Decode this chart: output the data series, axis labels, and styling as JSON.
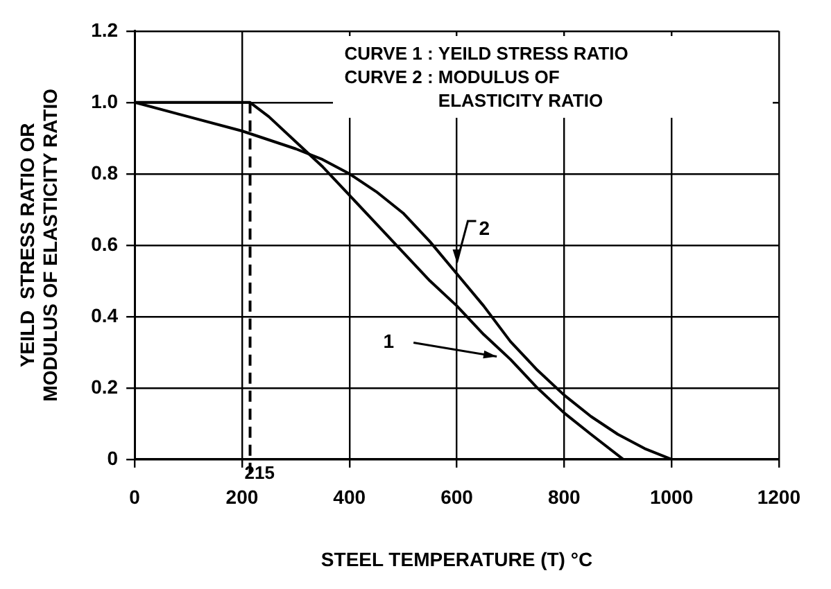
{
  "chart_data": {
    "type": "line",
    "xlabel": "STEEL TEMPERATURE (T) °C",
    "ylabel": "YEILD  STRESS RATIO OR MODULUS OF ELASTICITY RATIO",
    "xlim": [
      0,
      1200
    ],
    "xticks": [
      0,
      200,
      400,
      600,
      800,
      1000,
      1200
    ],
    "ylim": [
      0,
      1.2
    ],
    "yticks": [
      {
        "value": 0,
        "label": "0"
      },
      0.2,
      0.4,
      0.6,
      0.8,
      {
        "value": 1,
        "label": "1.0"
      },
      1.2
    ],
    "grid": true,
    "legend": false,
    "marker": "none",
    "line_style": "solid",
    "series": [
      {
        "color": "#000000",
        "x": [
          0,
          215,
          250,
          300,
          350,
          400,
          450,
          500,
          550,
          600,
          650,
          700,
          750,
          800,
          850,
          910
        ],
        "values": [
          1,
          1,
          0.96,
          0.89,
          0.82,
          0.74,
          0.66,
          0.58,
          0.5,
          0.43,
          0.35,
          0.28,
          0.2,
          0.13,
          0.07,
          0
        ]
      },
      {
        "color": "#000000",
        "x": [
          0,
          100,
          200,
          300,
          350,
          400,
          450,
          500,
          550,
          600,
          650,
          700,
          750,
          800,
          850,
          900,
          950,
          1000
        ],
        "values": [
          1,
          0.96,
          0.92,
          0.87,
          0.84,
          0.8,
          0.75,
          0.69,
          0.61,
          0.52,
          0.43,
          0.33,
          0.25,
          0.18,
          0.12,
          0.07,
          0.03,
          0
        ]
      }
    ],
    "ref_lines": [
      {
        "axis": "x",
        "value": 215,
        "label": "215",
        "line_style": "dashed",
        "color": "#000000"
      }
    ],
    "annotations": [
      "CURVE 1 : YEILD STRESS RATIO",
      "CURVE 2 : MODULUS OF ELASTICITY RATIO",
      {
        "text": "1",
        "x": 690,
        "y": 0.28
      },
      {
        "text": "2",
        "x": 600,
        "y": 0.52
      }
    ]
  }
}
